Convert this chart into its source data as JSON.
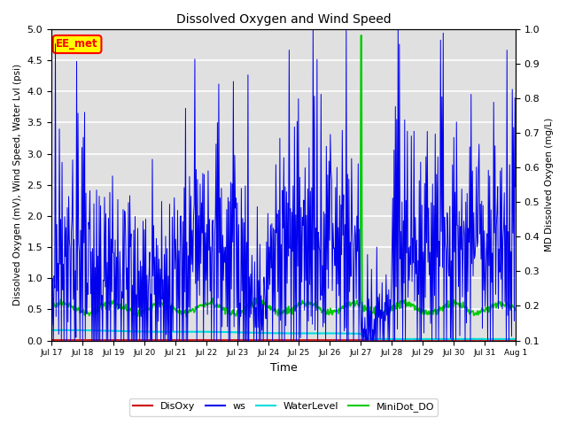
{
  "title": "Dissolved Oxygen and Wind Speed",
  "xlabel": "Time",
  "ylabel_left": "Dissolved Oxygen (mV), Wind Speed, Water Lvl (psi)",
  "ylabel_right": "MD Dissolved Oxygen (mg/L)",
  "ylim_left": [
    0.0,
    5.0
  ],
  "ylim_right": [
    0.1,
    1.0
  ],
  "annotation_text": "EE_met",
  "legend_labels": [
    "DisOxy",
    "ws",
    "WaterLevel",
    "MiniDot_DO"
  ],
  "legend_colors": [
    "#cc0000",
    "#0000ee",
    "#00dddd",
    "#00cc00"
  ],
  "bg_color": "#e0e0e0",
  "grid_color": "white",
  "xtick_labels": [
    "Jul 17",
    "Jul 18",
    "Jul 19",
    "Jul 20",
    "Jul 21",
    "Jul 22",
    "Jul 23",
    "Jul 24",
    "Jul 25",
    "Jul 26",
    "Jul 27",
    "Jul 28",
    "Jul 29",
    "Jul 30",
    "Jul 31",
    "Aug 1"
  ],
  "num_points": 700
}
